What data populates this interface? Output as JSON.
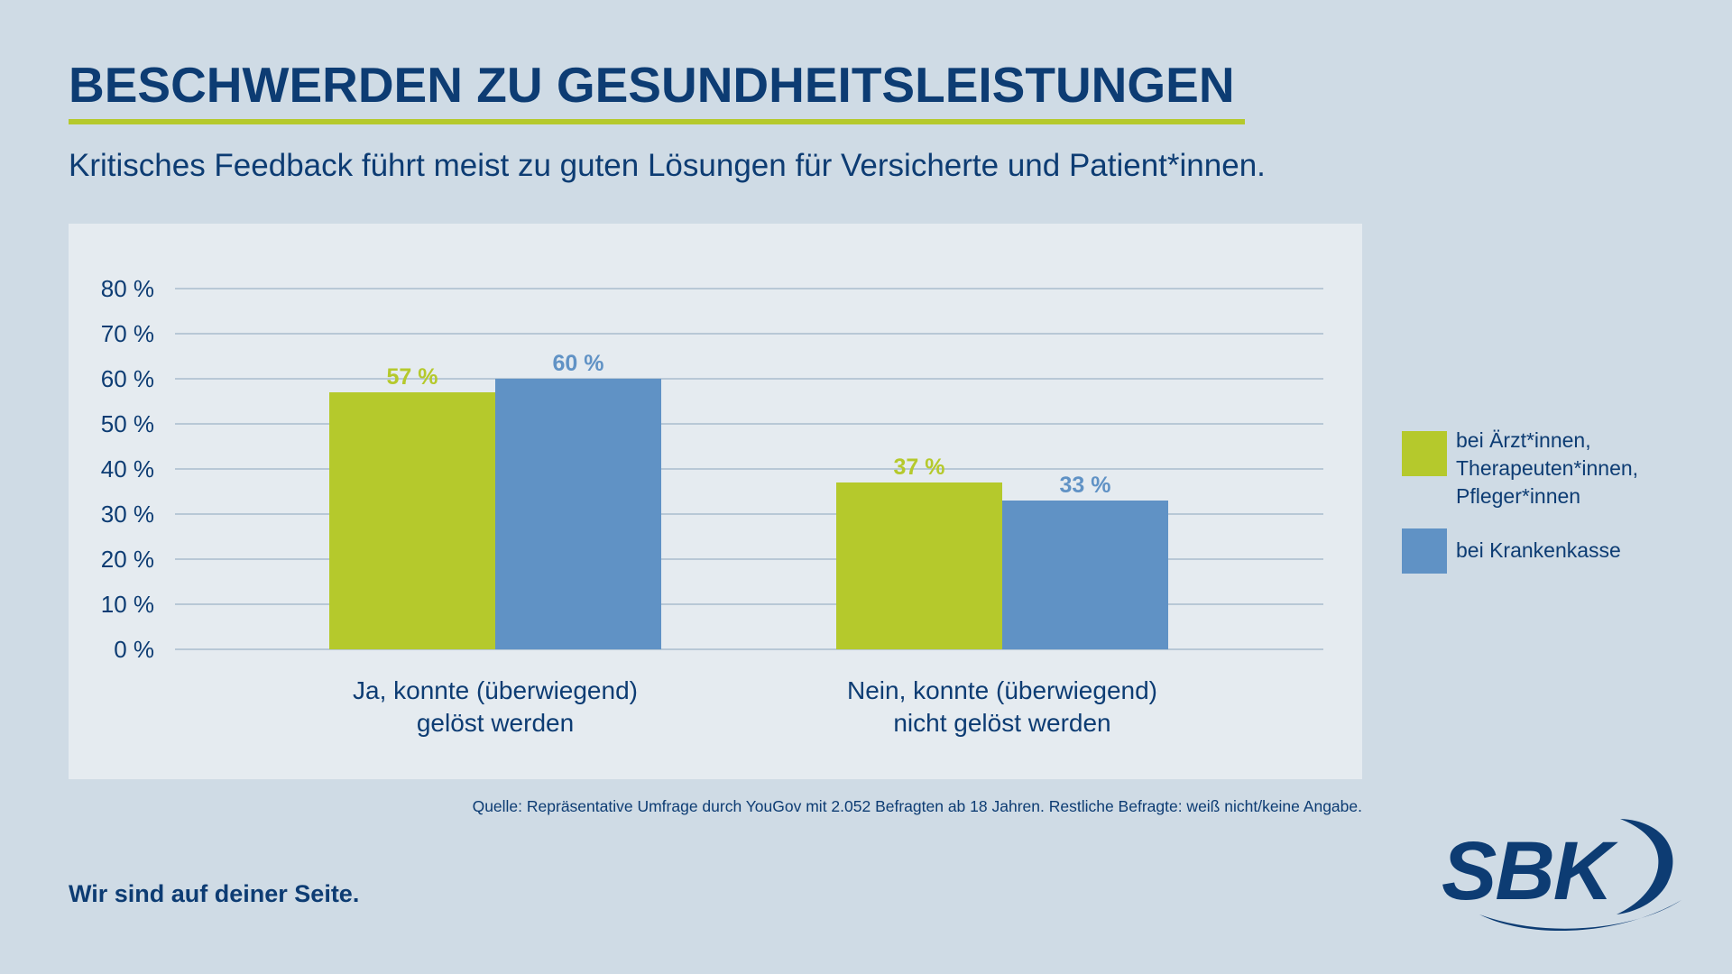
{
  "header": {
    "title": "BESCHWERDEN ZU GESUNDHEITSLEISTUNGEN",
    "subtitle": "Kritisches Feedback führt meist zu guten Lösungen für Versicherte und Patient*innen."
  },
  "colors": {
    "background": "#cfdbe5",
    "panel": "#e5ebf0",
    "navy": "#0d3c73",
    "green": "#b5c92c",
    "blue": "#6092c5",
    "grid": "#a9bccd"
  },
  "chart_data": {
    "type": "bar",
    "categories": [
      "Ja, konnte (überwiegend)\ngelöst werden",
      "Nein, konnte (überwiegend)\nnicht gelöst werden"
    ],
    "series": [
      {
        "name": "bei Ärzt*innen,\nTherapeuten*innen,\nPfleger*innen",
        "color": "#b5c92c",
        "label_color": "#b5c92c",
        "values": [
          57,
          37
        ],
        "labels": [
          "57 %",
          "37 %"
        ]
      },
      {
        "name": "bei Krankenkasse",
        "color": "#6092c5",
        "label_color": "#6092c5",
        "values": [
          60,
          33
        ],
        "labels": [
          "60 %",
          "33 %"
        ]
      }
    ],
    "ylim": [
      0,
      80
    ],
    "yticks": [
      "0 %",
      "10 %",
      "20 %",
      "30 %",
      "40 %",
      "50 %",
      "60 %",
      "70 %",
      "80 %"
    ],
    "grid": true,
    "legend_position": "right"
  },
  "footer": {
    "source": "Quelle: Repräsentative Umfrage durch YouGov mit 2.052 Befragten ab 18 Jahren. Restliche Befragte: weiß nicht/keine Angabe.",
    "tagline": "Wir sind auf deiner Seite.",
    "logo_text": "SBK"
  }
}
